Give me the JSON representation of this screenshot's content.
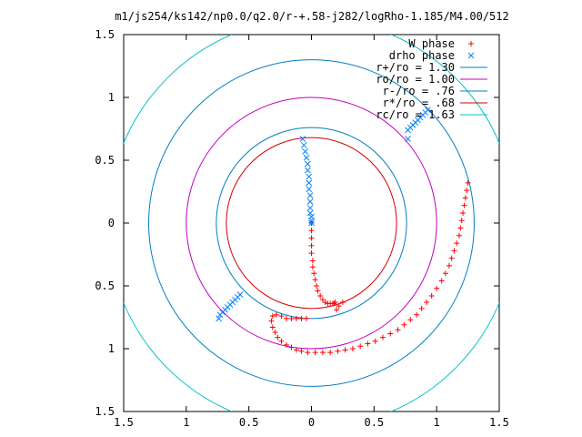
{
  "chart_data": {
    "type": "scatter",
    "title": "m1/js254/ks142/np0.0/q2.0/r-+.58-j282/logRho-1.185/M4.00/512",
    "xlabel": "",
    "ylabel": "",
    "xlim": [
      -1.5,
      1.5
    ],
    "ylim": [
      -1.5,
      1.5
    ],
    "x_ticks": [
      -1.5,
      -1,
      -0.5,
      0,
      0.5,
      1,
      1.5
    ],
    "y_ticks": [
      -1.5,
      -1,
      -0.5,
      0,
      0.5,
      1,
      1.5
    ],
    "x_tick_labels": [
      "1.5",
      "1",
      "0.5",
      "0",
      "0.5",
      "1",
      "1.5"
    ],
    "y_tick_labels": [
      "1.5",
      "1",
      "0.5",
      "0",
      "0.5",
      "1",
      "1.5"
    ],
    "grid": false,
    "legend_position": "top-right",
    "series": [
      {
        "name": "W phase",
        "marker": "plus",
        "color": "#ff0000",
        "x": [
          1.25,
          1.24,
          1.23,
          1.22,
          1.21,
          1.2,
          1.19,
          1.18,
          1.16,
          1.14,
          1.12,
          1.1,
          1.07,
          1.04,
          1.0,
          0.96,
          0.92,
          0.88,
          0.84,
          0.79,
          0.74,
          0.69,
          0.63,
          0.57,
          0.51,
          0.45,
          0.39,
          0.33,
          0.27,
          0.21,
          0.15,
          0.09,
          0.03,
          -0.03,
          -0.08,
          -0.12,
          -0.16,
          -0.2,
          -0.24,
          -0.27,
          -0.29,
          -0.31,
          -0.32,
          -0.31,
          -0.28,
          -0.24,
          -0.2,
          -0.16,
          -0.12,
          -0.08,
          -0.04,
          0.0,
          0.0,
          0.0,
          0.0,
          0.0,
          0.01,
          0.01,
          0.02,
          0.03,
          0.04,
          0.05,
          0.07,
          0.09,
          0.11,
          0.13,
          0.15,
          0.17,
          0.18,
          0.19,
          0.2,
          0.22,
          0.25
        ],
        "y": [
          0.32,
          0.26,
          0.2,
          0.14,
          0.08,
          0.02,
          -0.04,
          -0.1,
          -0.16,
          -0.22,
          -0.28,
          -0.34,
          -0.4,
          -0.46,
          -0.52,
          -0.58,
          -0.63,
          -0.68,
          -0.73,
          -0.77,
          -0.81,
          -0.85,
          -0.88,
          -0.91,
          -0.94,
          -0.96,
          -0.98,
          -1.0,
          -1.01,
          -1.02,
          -1.03,
          -1.03,
          -1.03,
          -1.03,
          -1.02,
          -1.01,
          -0.99,
          -0.97,
          -0.94,
          -0.91,
          -0.87,
          -0.83,
          -0.78,
          -0.74,
          -0.73,
          -0.74,
          -0.76,
          -0.76,
          -0.76,
          -0.76,
          -0.76,
          0.0,
          -0.06,
          -0.12,
          -0.18,
          -0.24,
          -0.3,
          -0.35,
          -0.4,
          -0.45,
          -0.5,
          -0.54,
          -0.58,
          -0.61,
          -0.63,
          -0.64,
          -0.64,
          -0.64,
          -0.64,
          -0.63,
          -0.69,
          -0.66,
          -0.63
        ]
      },
      {
        "name": "drho phase",
        "marker": "cross",
        "color": "#0080ff",
        "x": [
          -0.07,
          -0.06,
          -0.05,
          -0.04,
          -0.03,
          -0.03,
          -0.02,
          -0.02,
          -0.02,
          -0.01,
          -0.01,
          -0.01,
          -0.01,
          0.0,
          0.0,
          0.0,
          0.77,
          0.79,
          0.81,
          0.83,
          0.85,
          0.87,
          0.89,
          0.91,
          0.93,
          0.77,
          -0.73,
          -0.71,
          -0.69,
          -0.67,
          -0.65,
          -0.63,
          -0.61,
          -0.59,
          -0.57,
          -0.74
        ],
        "y": [
          0.67,
          0.62,
          0.57,
          0.52,
          0.47,
          0.42,
          0.37,
          0.32,
          0.27,
          0.22,
          0.17,
          0.12,
          0.08,
          0.05,
          0.02,
          0.0,
          0.74,
          0.76,
          0.78,
          0.8,
          0.82,
          0.84,
          0.86,
          0.88,
          0.9,
          0.67,
          -0.73,
          -0.71,
          -0.69,
          -0.67,
          -0.65,
          -0.63,
          -0.61,
          -0.59,
          -0.57,
          -0.76
        ]
      },
      {
        "name": "r+/ro = 1.30",
        "type": "circle",
        "radius": 1.3,
        "color": "#0080c0"
      },
      {
        "name": "ro/ro = 1.00",
        "type": "circle",
        "radius": 1.0,
        "color": "#c000c0"
      },
      {
        "name": "r-/ro = .76",
        "type": "circle",
        "radius": 0.76,
        "color": "#0080c0"
      },
      {
        "name": "r*/ro = .68",
        "type": "circle",
        "radius": 0.68,
        "color": "#d00000"
      },
      {
        "name": "rc/ro = 1.63",
        "type": "circle",
        "radius": 1.63,
        "color": "#00c0c0"
      }
    ]
  }
}
